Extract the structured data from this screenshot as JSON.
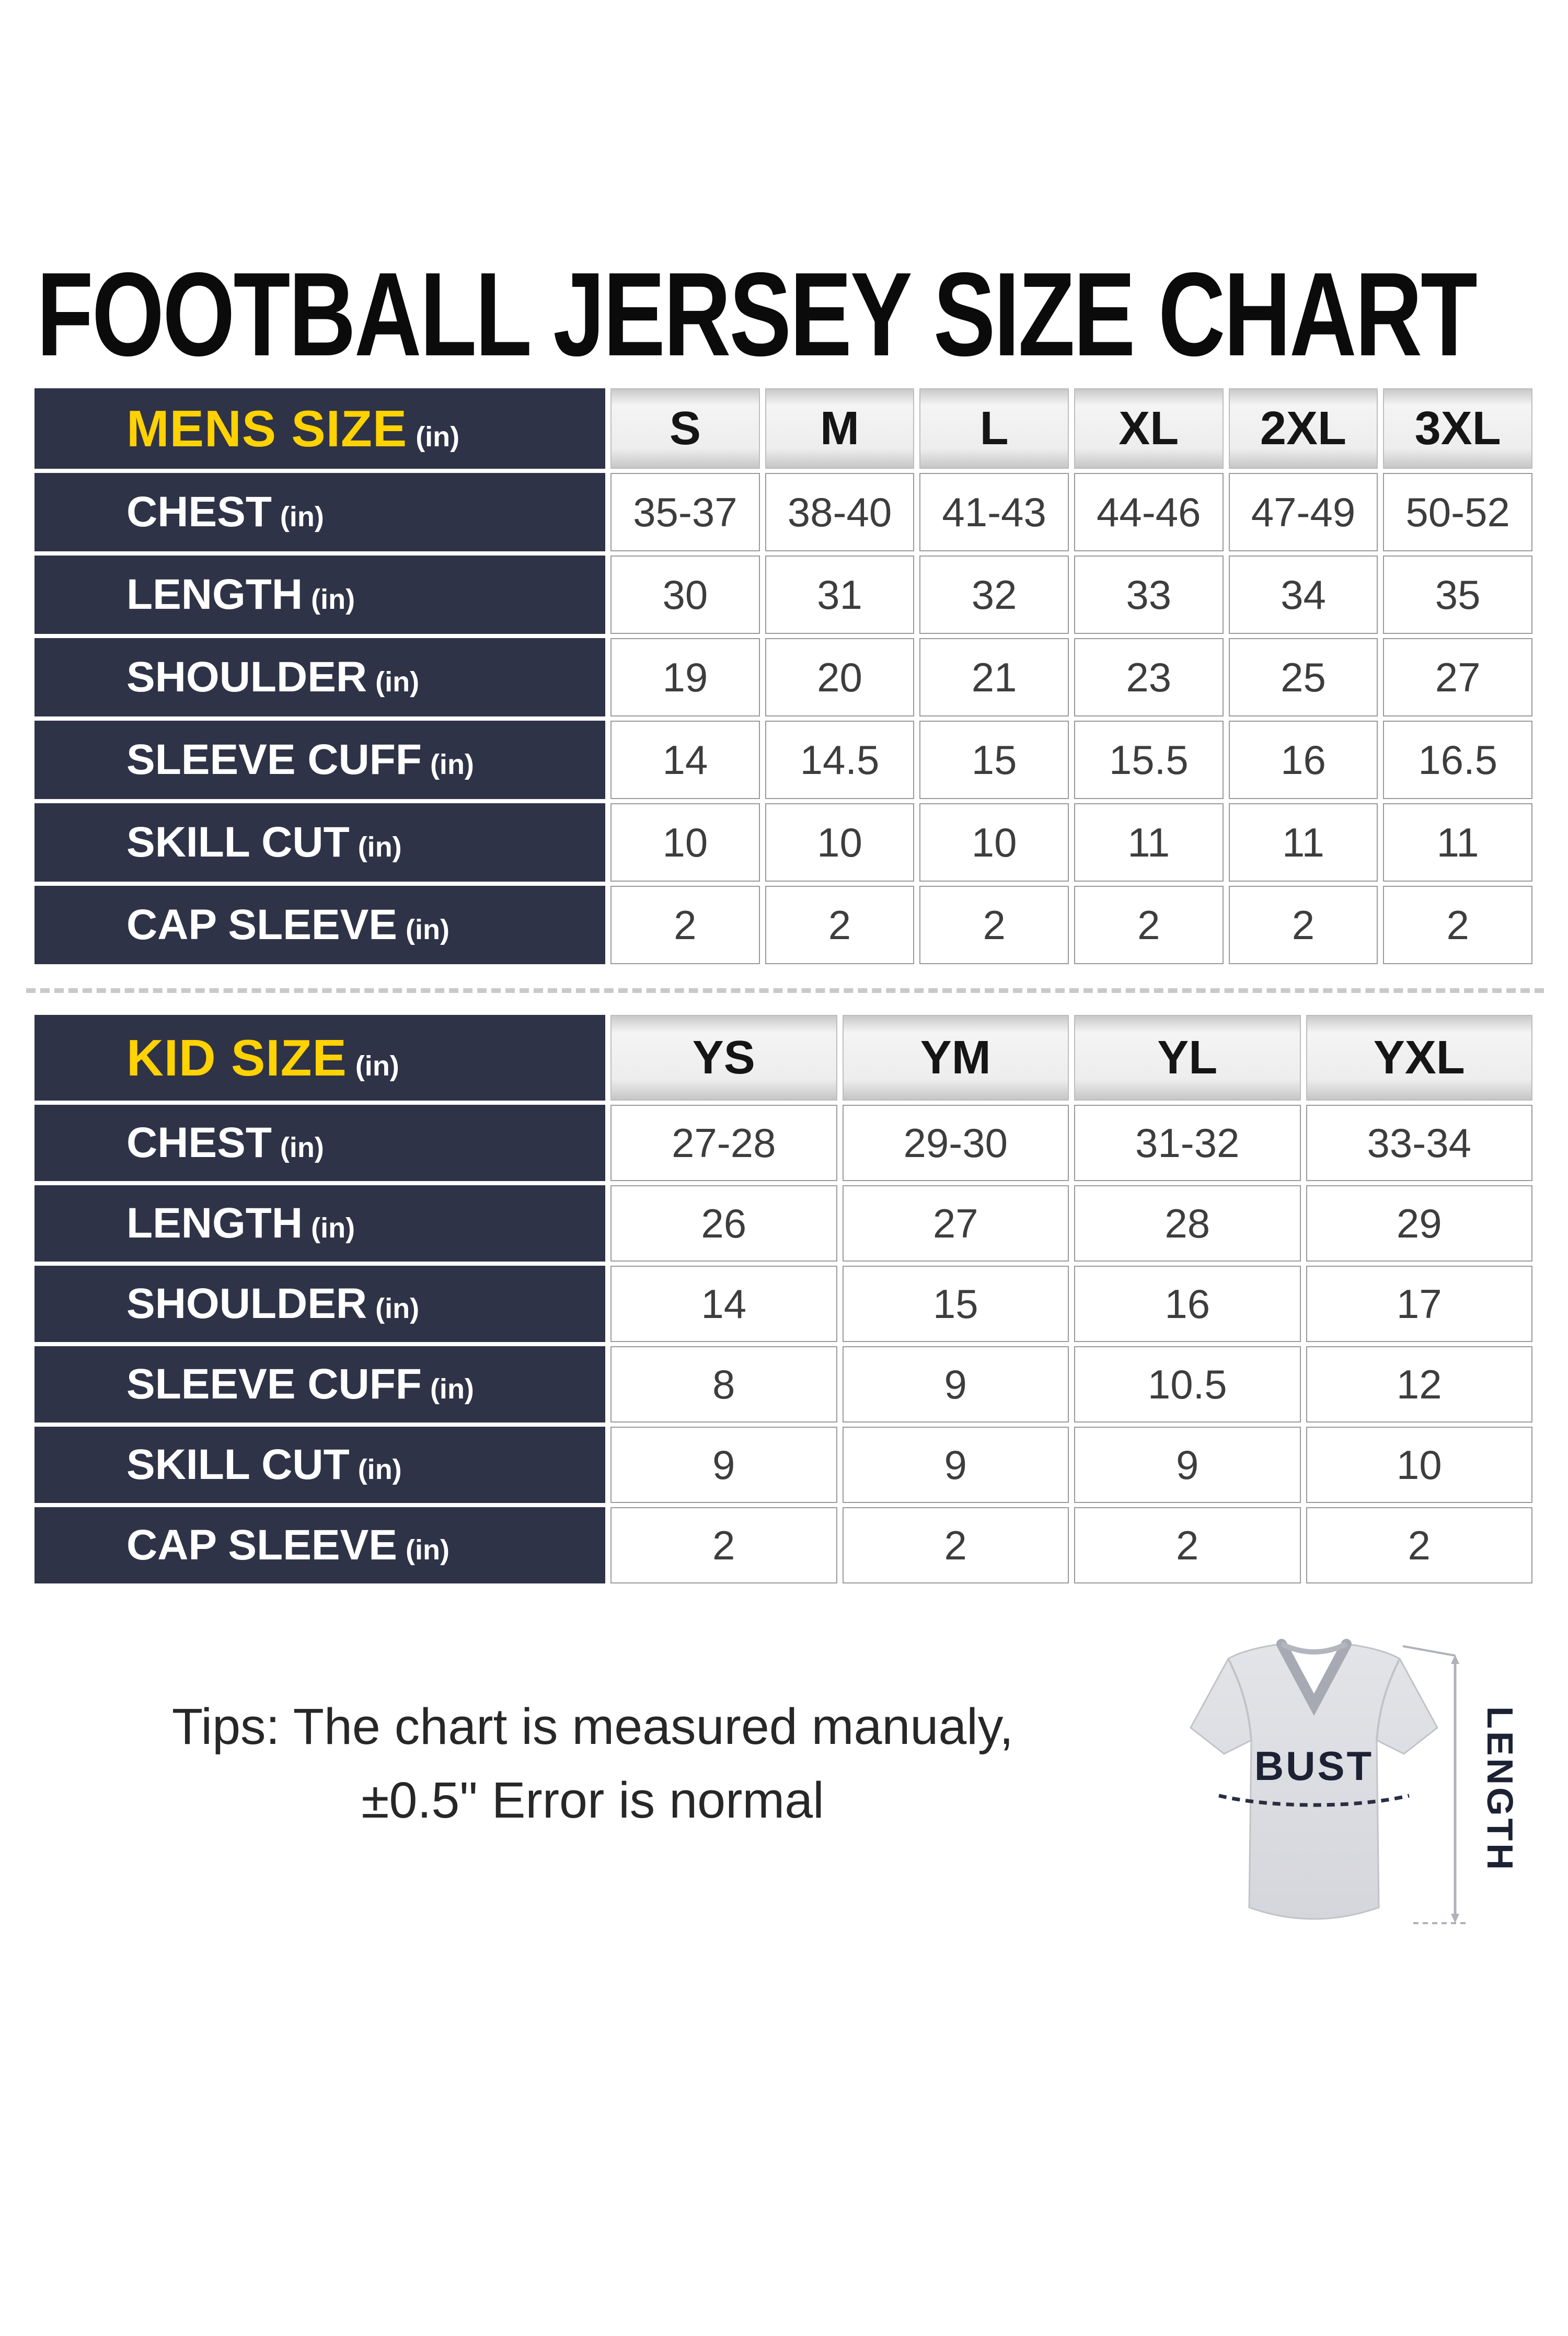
{
  "title": "FOOTBALL JERSEY SIZE CHART",
  "chart_data": [
    {
      "type": "table",
      "group_label": "MENS SIZE",
      "unit": "(in)",
      "columns": [
        "S",
        "M",
        "L",
        "XL",
        "2XL",
        "3XL"
      ],
      "rows": [
        {
          "label": "CHEST",
          "unit": "(in)",
          "values": [
            "35-37",
            "38-40",
            "41-43",
            "44-46",
            "47-49",
            "50-52"
          ]
        },
        {
          "label": "LENGTH",
          "unit": "(in)",
          "values": [
            "30",
            "31",
            "32",
            "33",
            "34",
            "35"
          ]
        },
        {
          "label": "SHOULDER",
          "unit": "(in)",
          "values": [
            "19",
            "20",
            "21",
            "23",
            "25",
            "27"
          ]
        },
        {
          "label": "SLEEVE CUFF",
          "unit": "(in)",
          "values": [
            "14",
            "14.5",
            "15",
            "15.5",
            "16",
            "16.5"
          ]
        },
        {
          "label": "SKILL CUT",
          "unit": "(in)",
          "values": [
            "10",
            "10",
            "10",
            "11",
            "11",
            "11"
          ]
        },
        {
          "label": "CAP SLEEVE",
          "unit": "(in)",
          "values": [
            "2",
            "2",
            "2",
            "2",
            "2",
            "2"
          ]
        }
      ]
    },
    {
      "type": "table",
      "group_label": "KID SIZE",
      "unit": "(in)",
      "columns": [
        "YS",
        "YM",
        "YL",
        "YXL"
      ],
      "rows": [
        {
          "label": "CHEST",
          "unit": "(in)",
          "values": [
            "27-28",
            "29-30",
            "31-32",
            "33-34"
          ]
        },
        {
          "label": "LENGTH",
          "unit": "(in)",
          "values": [
            "26",
            "27",
            "28",
            "29"
          ]
        },
        {
          "label": "SHOULDER",
          "unit": "(in)",
          "values": [
            "14",
            "15",
            "16",
            "17"
          ]
        },
        {
          "label": "SLEEVE CUFF",
          "unit": "(in)",
          "values": [
            "8",
            "9",
            "10.5",
            "12"
          ]
        },
        {
          "label": "SKILL CUT",
          "unit": "(in)",
          "values": [
            "9",
            "9",
            "9",
            "10"
          ]
        },
        {
          "label": "CAP SLEEVE",
          "unit": "(in)",
          "values": [
            "2",
            "2",
            "2",
            "2"
          ]
        }
      ]
    }
  ],
  "tips": {
    "line1": "Tips: The chart is measured manualy,",
    "line2": "±0.5\" Error is normal"
  },
  "jersey_diagram": {
    "bust_label": "BUST",
    "length_label": "LENGTH"
  },
  "colors": {
    "navy": "#2f3347",
    "yellow": "#ffd200",
    "header_gray": "#ececec",
    "cell_border": "#9a9a9a",
    "value_text": "#3d3d3d",
    "title_text": "#0b0b0b",
    "dash_separator": "#c9c9c9",
    "jersey_fill": "#dadbe0",
    "jersey_line": "#2a2e42"
  }
}
